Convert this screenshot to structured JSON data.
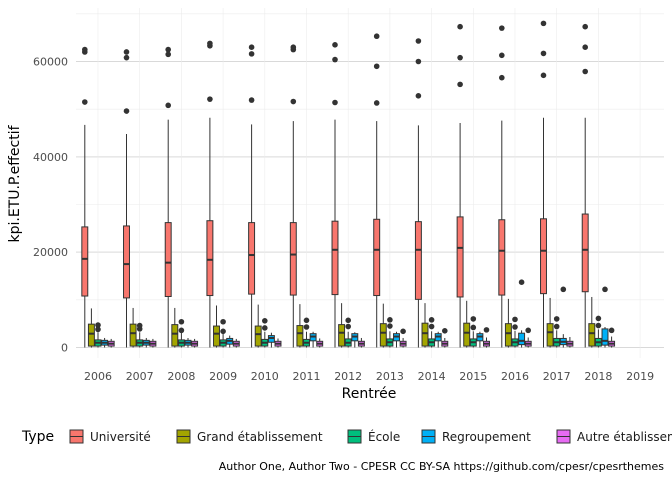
{
  "chart_data": {
    "type": "boxplot",
    "xlabel": "Rentrée",
    "ylabel": "kpi.ETU.P.effectif",
    "ylim": [
      -2000,
      72000
    ],
    "yticks": [
      0,
      20000,
      40000,
      60000
    ],
    "ytick_labels": [
      "0",
      "20000",
      "40000",
      "60000"
    ],
    "categories": [
      "2006",
      "2007",
      "2008",
      "2009",
      "2010",
      "2011",
      "2012",
      "2013",
      "2014",
      "2015",
      "2016",
      "2017",
      "2018",
      "2019"
    ],
    "legend": {
      "title": "Type",
      "position": "bottom"
    },
    "grid": true,
    "caption": "Author One, Author Two - CPESR CC BY-SA https://github.com/cpesr/cpesrthemes",
    "series": [
      {
        "name": "Université",
        "color": "#F8766D",
        "boxes": [
          {
            "year": "2006",
            "whislo": 0,
            "q1": 10800,
            "med": 18600,
            "q3": 25300,
            "whishi": 46700,
            "fliers": [
              51500,
              62000,
              62500
            ]
          },
          {
            "year": "2007",
            "whislo": 0,
            "q1": 10400,
            "med": 17500,
            "q3": 25500,
            "whishi": 44800,
            "fliers": [
              49600,
              60800,
              62000
            ]
          },
          {
            "year": "2008",
            "whislo": 0,
            "q1": 10700,
            "med": 17800,
            "q3": 26200,
            "whishi": 47800,
            "fliers": [
              50800,
              61500,
              62500
            ]
          },
          {
            "year": "2009",
            "whislo": 0,
            "q1": 10900,
            "med": 18400,
            "q3": 26600,
            "whishi": 48200,
            "fliers": [
              52100,
              63300,
              63800
            ]
          },
          {
            "year": "2010",
            "whislo": 0,
            "q1": 11200,
            "med": 19400,
            "q3": 26200,
            "whishi": 46800,
            "fliers": [
              51900,
              61600,
              63000
            ]
          },
          {
            "year": "2011",
            "whislo": 0,
            "q1": 11000,
            "med": 19500,
            "q3": 26200,
            "whishi": 47500,
            "fliers": [
              51600,
              62500,
              63000
            ]
          },
          {
            "year": "2012",
            "whislo": 0,
            "q1": 11100,
            "med": 20500,
            "q3": 26500,
            "whishi": 47800,
            "fliers": [
              51400,
              60400,
              63500
            ]
          },
          {
            "year": "2013",
            "whislo": 0,
            "q1": 10900,
            "med": 20500,
            "q3": 26900,
            "whishi": 47500,
            "fliers": [
              51300,
              59000,
              65300
            ]
          },
          {
            "year": "2014",
            "whislo": 0,
            "q1": 10100,
            "med": 20500,
            "q3": 26400,
            "whishi": 46600,
            "fliers": [
              52800,
              60000,
              64300
            ]
          },
          {
            "year": "2015",
            "whislo": 0,
            "q1": 10600,
            "med": 20900,
            "q3": 27400,
            "whishi": 47100,
            "fliers": [
              55200,
              60800,
              67300
            ]
          },
          {
            "year": "2016",
            "whislo": 0,
            "q1": 11000,
            "med": 20300,
            "q3": 26800,
            "whishi": 47600,
            "fliers": [
              56600,
              61300,
              67000
            ]
          },
          {
            "year": "2017",
            "whislo": 0,
            "q1": 11300,
            "med": 20300,
            "q3": 27000,
            "whishi": 48200,
            "fliers": [
              57100,
              61700,
              68000
            ]
          },
          {
            "year": "2018",
            "whislo": 0,
            "q1": 11700,
            "med": 20500,
            "q3": 28000,
            "whishi": 48200,
            "fliers": [
              57900,
              63000,
              67300
            ]
          }
        ]
      },
      {
        "name": "Grand établissement",
        "color": "#A3A500",
        "boxes": [
          {
            "year": "2006",
            "whislo": 0,
            "q1": 300,
            "med": 2900,
            "q3": 4900,
            "whishi": 8200,
            "fliers": []
          },
          {
            "year": "2007",
            "whislo": 0,
            "q1": 300,
            "med": 3000,
            "q3": 4900,
            "whishi": 8300,
            "fliers": []
          },
          {
            "year": "2008",
            "whislo": 0,
            "q1": 300,
            "med": 2900,
            "q3": 4800,
            "whishi": 8300,
            "fliers": []
          },
          {
            "year": "2009",
            "whislo": 0,
            "q1": 300,
            "med": 2900,
            "q3": 4500,
            "whishi": 8800,
            "fliers": []
          },
          {
            "year": "2010",
            "whislo": 0,
            "q1": 300,
            "med": 2800,
            "q3": 4500,
            "whishi": 9000,
            "fliers": []
          },
          {
            "year": "2011",
            "whislo": 0,
            "q1": 300,
            "med": 3000,
            "q3": 4600,
            "whishi": 9100,
            "fliers": []
          },
          {
            "year": "2012",
            "whislo": 0,
            "q1": 300,
            "med": 3100,
            "q3": 4800,
            "whishi": 9300,
            "fliers": []
          },
          {
            "year": "2013",
            "whislo": 0,
            "q1": 300,
            "med": 3100,
            "q3": 5000,
            "whishi": 9200,
            "fliers": []
          },
          {
            "year": "2014",
            "whislo": 0,
            "q1": 300,
            "med": 3000,
            "q3": 5100,
            "whishi": 9300,
            "fliers": []
          },
          {
            "year": "2015",
            "whislo": 0,
            "q1": 300,
            "med": 3100,
            "q3": 5100,
            "whishi": 9800,
            "fliers": []
          },
          {
            "year": "2016",
            "whislo": 0,
            "q1": 300,
            "med": 3000,
            "q3": 5000,
            "whishi": 10200,
            "fliers": []
          },
          {
            "year": "2017",
            "whislo": 0,
            "q1": 300,
            "med": 3200,
            "q3": 5000,
            "whishi": 10400,
            "fliers": []
          },
          {
            "year": "2018",
            "whislo": 0,
            "q1": 300,
            "med": 3000,
            "q3": 5000,
            "whishi": 10600,
            "fliers": []
          }
        ]
      },
      {
        "name": "École",
        "color": "#00BF7D",
        "boxes": [
          {
            "year": "2006",
            "whislo": 0,
            "q1": 300,
            "med": 1000,
            "q3": 1600,
            "whishi": 3200,
            "fliers": [
              3800,
              4700
            ]
          },
          {
            "year": "2007",
            "whislo": 0,
            "q1": 300,
            "med": 1000,
            "q3": 1600,
            "whishi": 3200,
            "fliers": [
              3900,
              4600
            ]
          },
          {
            "year": "2008",
            "whislo": 0,
            "q1": 300,
            "med": 1000,
            "q3": 1600,
            "whishi": 3300,
            "fliers": [
              3600,
              5400
            ]
          },
          {
            "year": "2009",
            "whislo": 0,
            "q1": 300,
            "med": 1000,
            "q3": 1600,
            "whishi": 3100,
            "fliers": [
              3400,
              5400
            ]
          },
          {
            "year": "2010",
            "whislo": 0,
            "q1": 300,
            "med": 1000,
            "q3": 1700,
            "whishi": 3300,
            "fliers": [
              4100,
              5600
            ]
          },
          {
            "year": "2011",
            "whislo": 0,
            "q1": 300,
            "med": 1000,
            "q3": 1700,
            "whishi": 3300,
            "fliers": [
              4300,
              5700
            ]
          },
          {
            "year": "2012",
            "whislo": 0,
            "q1": 300,
            "med": 1000,
            "q3": 1800,
            "whishi": 3300,
            "fliers": [
              4400,
              5700
            ]
          },
          {
            "year": "2013",
            "whislo": 0,
            "q1": 300,
            "med": 1100,
            "q3": 1800,
            "whishi": 3400,
            "fliers": [
              4500,
              5800
            ]
          },
          {
            "year": "2014",
            "whislo": 0,
            "q1": 300,
            "med": 1100,
            "q3": 1800,
            "whishi": 3400,
            "fliers": [
              4400,
              5800
            ]
          },
          {
            "year": "2015",
            "whislo": 0,
            "q1": 300,
            "med": 1100,
            "q3": 1800,
            "whishi": 3400,
            "fliers": [
              4200,
              6000
            ]
          },
          {
            "year": "2016",
            "whislo": 0,
            "q1": 300,
            "med": 1100,
            "q3": 1800,
            "whishi": 3500,
            "fliers": [
              4300,
              5900
            ]
          },
          {
            "year": "2017",
            "whislo": 0,
            "q1": 300,
            "med": 1100,
            "q3": 1900,
            "whishi": 3600,
            "fliers": [
              4400,
              6000
            ]
          },
          {
            "year": "2018",
            "whislo": 0,
            "q1": 300,
            "med": 1100,
            "q3": 1900,
            "whishi": 3800,
            "fliers": [
              4600,
              6100
            ]
          }
        ]
      },
      {
        "name": "Regroupement",
        "color": "#00B0F6",
        "boxes": [
          {
            "year": "2006",
            "whislo": 0,
            "q1": 500,
            "med": 1000,
            "q3": 1500,
            "whishi": 2000,
            "fliers": []
          },
          {
            "year": "2007",
            "whislo": 0,
            "q1": 500,
            "med": 1000,
            "q3": 1500,
            "whishi": 2000,
            "fliers": []
          },
          {
            "year": "2008",
            "whislo": 0,
            "q1": 500,
            "med": 1000,
            "q3": 1500,
            "whishi": 2000,
            "fliers": []
          },
          {
            "year": "2009",
            "whislo": 0,
            "q1": 700,
            "med": 1400,
            "q3": 1900,
            "whishi": 2500,
            "fliers": []
          },
          {
            "year": "2010",
            "whislo": 0,
            "q1": 1100,
            "med": 2000,
            "q3": 2500,
            "whishi": 3100,
            "fliers": []
          },
          {
            "year": "2011",
            "whislo": 0,
            "q1": 1400,
            "med": 2300,
            "q3": 2900,
            "whishi": 3300,
            "fliers": []
          },
          {
            "year": "2012",
            "whislo": 0,
            "q1": 1400,
            "med": 2300,
            "q3": 2900,
            "whishi": 3200,
            "fliers": []
          },
          {
            "year": "2013",
            "whislo": 0,
            "q1": 1400,
            "med": 2300,
            "q3": 2900,
            "whishi": 3300,
            "fliers": []
          },
          {
            "year": "2014",
            "whislo": 0,
            "q1": 1400,
            "med": 2300,
            "q3": 2900,
            "whishi": 3300,
            "fliers": []
          },
          {
            "year": "2015",
            "whislo": 0,
            "q1": 1400,
            "med": 2300,
            "q3": 2900,
            "whishi": 3300,
            "fliers": []
          },
          {
            "year": "2016",
            "whislo": 0,
            "q1": 600,
            "med": 1400,
            "q3": 3000,
            "whishi": 3600,
            "fliers": [
              13700
            ]
          },
          {
            "year": "2017",
            "whislo": 0,
            "q1": 600,
            "med": 1200,
            "q3": 1900,
            "whishi": 2800,
            "fliers": [
              12200
            ]
          },
          {
            "year": "2018",
            "whislo": 0,
            "q1": 500,
            "med": 1400,
            "q3": 3900,
            "whishi": 4300,
            "fliers": [
              12200
            ]
          }
        ]
      },
      {
        "name": "Autre établissement",
        "color": "#E76BF3",
        "boxes": [
          {
            "year": "2006",
            "whislo": 0,
            "q1": 300,
            "med": 800,
            "q3": 1300,
            "whishi": 1800,
            "fliers": []
          },
          {
            "year": "2007",
            "whislo": 0,
            "q1": 300,
            "med": 800,
            "q3": 1300,
            "whishi": 1800,
            "fliers": []
          },
          {
            "year": "2008",
            "whislo": 0,
            "q1": 300,
            "med": 800,
            "q3": 1300,
            "whishi": 1800,
            "fliers": []
          },
          {
            "year": "2009",
            "whislo": 0,
            "q1": 300,
            "med": 800,
            "q3": 1300,
            "whishi": 1800,
            "fliers": []
          },
          {
            "year": "2010",
            "whislo": 0,
            "q1": 300,
            "med": 800,
            "q3": 1300,
            "whishi": 1900,
            "fliers": []
          },
          {
            "year": "2011",
            "whislo": 0,
            "q1": 300,
            "med": 800,
            "q3": 1300,
            "whishi": 1900,
            "fliers": []
          },
          {
            "year": "2012",
            "whislo": 0,
            "q1": 300,
            "med": 800,
            "q3": 1300,
            "whishi": 2000,
            "fliers": []
          },
          {
            "year": "2013",
            "whislo": 0,
            "q1": 300,
            "med": 800,
            "q3": 1300,
            "whishi": 2000,
            "fliers": [
              3400
            ]
          },
          {
            "year": "2014",
            "whislo": 0,
            "q1": 300,
            "med": 800,
            "q3": 1300,
            "whishi": 2000,
            "fliers": [
              3500
            ]
          },
          {
            "year": "2015",
            "whislo": 0,
            "q1": 300,
            "med": 800,
            "q3": 1300,
            "whishi": 2100,
            "fliers": [
              3700
            ]
          },
          {
            "year": "2016",
            "whislo": 0,
            "q1": 300,
            "med": 800,
            "q3": 1300,
            "whishi": 2100,
            "fliers": [
              3600
            ]
          },
          {
            "year": "2017",
            "whislo": 0,
            "q1": 300,
            "med": 800,
            "q3": 1300,
            "whishi": 2200,
            "fliers": []
          },
          {
            "year": "2018",
            "whislo": 0,
            "q1": 300,
            "med": 800,
            "q3": 1300,
            "whishi": 2300,
            "fliers": [
              3600
            ]
          }
        ]
      }
    ]
  }
}
